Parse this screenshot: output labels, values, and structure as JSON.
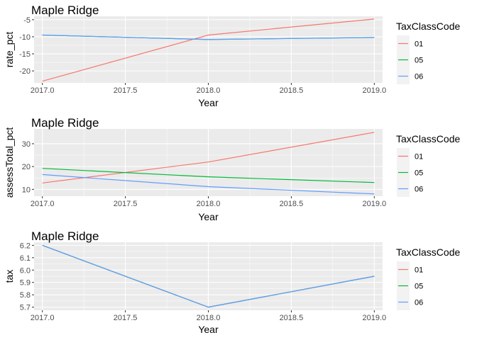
{
  "chart_data": [
    {
      "type": "line",
      "title": "Maple Ridge",
      "xlabel": "Year",
      "ylabel": "rate_pct",
      "x": [
        2017.0,
        2018.0,
        2019.0
      ],
      "xlim": [
        2016.95,
        2019.05
      ],
      "ylim": [
        -23.5,
        -4.0
      ],
      "x_ticks": [
        2017.0,
        2017.5,
        2018.0,
        2018.5,
        2019.0
      ],
      "x_tick_labels": [
        "2017.0",
        "2017.5",
        "2018.0",
        "2018.5",
        "2019.0"
      ],
      "y_ticks": [
        -20,
        -15,
        -10,
        -5
      ],
      "y_tick_labels": [
        "-20",
        "-15",
        "-10",
        "-5"
      ],
      "series": [
        {
          "name": "01",
          "color": "#F8766D",
          "values": [
            -23.0,
            -9.5,
            -4.8
          ]
        },
        {
          "name": "05",
          "color": "#00BA38",
          "values": [
            -9.5,
            -10.8,
            -10.2
          ]
        },
        {
          "name": "06",
          "color": "#619CFF",
          "values": [
            -9.5,
            -10.8,
            -10.2
          ]
        }
      ],
      "grid": true,
      "legend": {
        "title": "TaxClassCode",
        "position": "right",
        "entries": [
          "01",
          "05",
          "06"
        ]
      }
    },
    {
      "type": "line",
      "title": "Maple Ridge",
      "xlabel": "Year",
      "ylabel": "assessTotal_pct",
      "x": [
        2017.0,
        2018.0,
        2019.0
      ],
      "xlim": [
        2016.95,
        2019.05
      ],
      "ylim": [
        7.0,
        36.5
      ],
      "x_ticks": [
        2017.0,
        2017.5,
        2018.0,
        2018.5,
        2019.0
      ],
      "x_tick_labels": [
        "2017.0",
        "2017.5",
        "2018.0",
        "2018.5",
        "2019.0"
      ],
      "y_ticks": [
        10,
        20,
        30
      ],
      "y_tick_labels": [
        "10",
        "20",
        "30"
      ],
      "series": [
        {
          "name": "01",
          "color": "#F8766D",
          "values": [
            12.8,
            22.0,
            35.0
          ]
        },
        {
          "name": "05",
          "color": "#00BA38",
          "values": [
            19.2,
            15.5,
            13.0
          ]
        },
        {
          "name": "06",
          "color": "#619CFF",
          "values": [
            16.5,
            11.2,
            8.0
          ]
        }
      ],
      "grid": true,
      "legend": {
        "title": "TaxClassCode",
        "position": "right",
        "entries": [
          "01",
          "05",
          "06"
        ]
      }
    },
    {
      "type": "line",
      "title": "Maple Ridge",
      "xlabel": "Year",
      "ylabel": "tax",
      "x": [
        2017.0,
        2018.0,
        2019.0
      ],
      "xlim": [
        2016.95,
        2019.05
      ],
      "ylim": [
        5.675,
        6.225
      ],
      "x_ticks": [
        2017.0,
        2017.5,
        2018.0,
        2018.5,
        2019.0
      ],
      "x_tick_labels": [
        "2017.0",
        "2017.5",
        "2018.0",
        "2018.5",
        "2019.0"
      ],
      "y_ticks": [
        5.7,
        5.8,
        5.9,
        6.0,
        6.1,
        6.2
      ],
      "y_tick_labels": [
        "5.7",
        "5.8",
        "5.9",
        "6.0",
        "6.1",
        "6.2"
      ],
      "series": [
        {
          "name": "01",
          "color": "#F8766D",
          "values": [
            6.2,
            5.7,
            5.95
          ]
        },
        {
          "name": "05",
          "color": "#00BA38",
          "values": [
            6.2,
            5.7,
            5.95
          ]
        },
        {
          "name": "06",
          "color": "#619CFF",
          "values": [
            6.2,
            5.7,
            5.95
          ]
        }
      ],
      "grid": true,
      "legend": {
        "title": "TaxClassCode",
        "position": "right",
        "entries": [
          "01",
          "05",
          "06"
        ]
      }
    }
  ]
}
